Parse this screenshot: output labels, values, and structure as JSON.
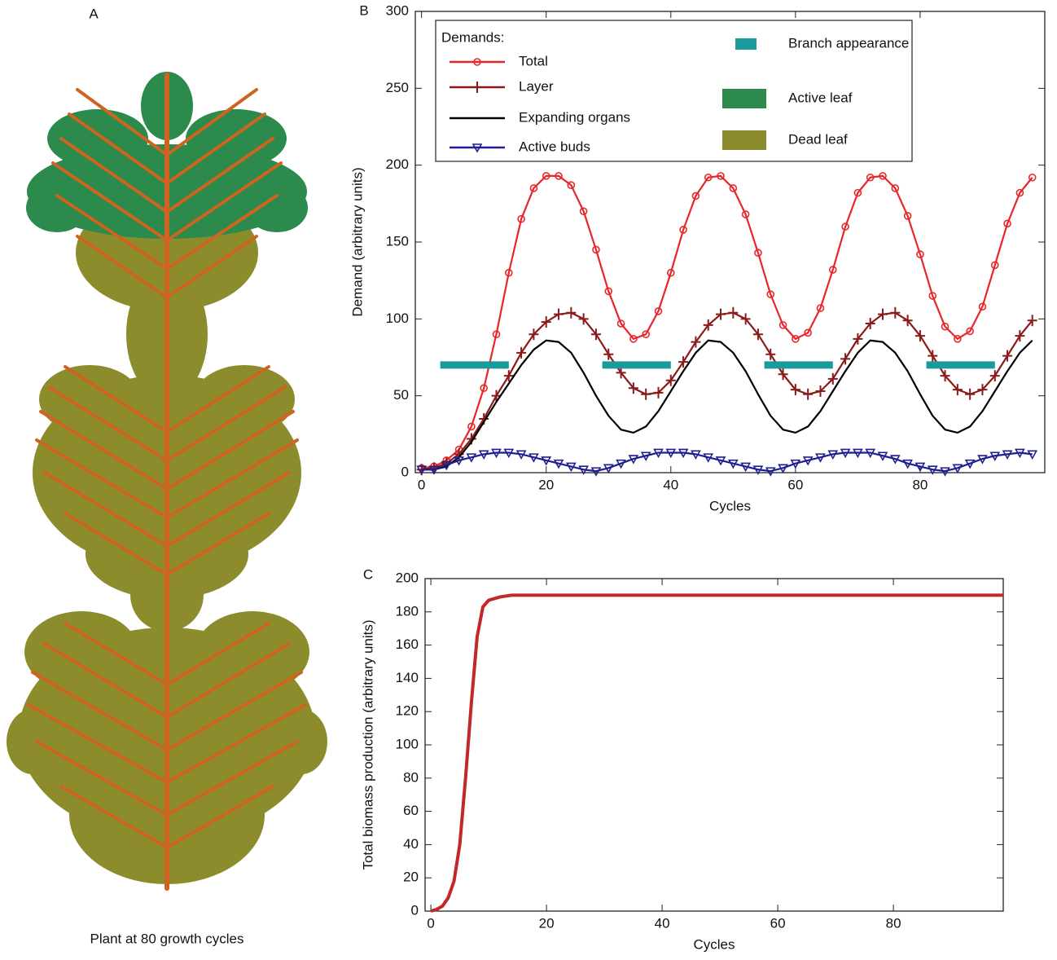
{
  "plant": {
    "panel_label": "A",
    "caption": "Plant at 80 growth cycles"
  },
  "chart_data": [
    {
      "type": "line",
      "panel_label": "B",
      "xlabel": "Cycles",
      "ylabel": "Demand (arbitrary units)",
      "legend_title": "Demands:",
      "legend": "upper left",
      "grid": false,
      "xlim": [
        -1,
        100
      ],
      "ylim": [
        0,
        300
      ],
      "xticks": [
        0,
        20,
        40,
        60,
        80
      ],
      "yticks": [
        0,
        50,
        100,
        150,
        200,
        250,
        300
      ],
      "x": [
        0,
        2,
        4,
        6,
        8,
        10,
        12,
        14,
        16,
        18,
        20,
        22,
        24,
        26,
        28,
        30,
        32,
        34,
        36,
        38,
        40,
        42,
        44,
        46,
        48,
        50,
        52,
        54,
        56,
        58,
        60,
        62,
        64,
        66,
        68,
        70,
        72,
        74,
        76,
        78,
        80,
        82,
        84,
        86,
        88,
        90,
        92,
        94,
        96,
        98
      ],
      "series": [
        {
          "name": "Total",
          "color": "#e8262a",
          "marker": "circle",
          "values": [
            3,
            4,
            8,
            15,
            30,
            55,
            90,
            130,
            165,
            185,
            193,
            193,
            187,
            170,
            145,
            118,
            97,
            87,
            90,
            105,
            130,
            158,
            180,
            192,
            193,
            185,
            168,
            143,
            116,
            96,
            87,
            91,
            107,
            132,
            160,
            182,
            192,
            193,
            185,
            167,
            142,
            115,
            95,
            87,
            92,
            108,
            135,
            162,
            182,
            192
          ]
        },
        {
          "name": "Layer",
          "color": "#8b1a1a",
          "marker": "plus",
          "values": [
            2,
            3,
            6,
            12,
            22,
            35,
            50,
            63,
            78,
            90,
            98,
            103,
            104,
            100,
            90,
            77,
            65,
            55,
            51,
            52,
            60,
            72,
            85,
            96,
            103,
            104,
            100,
            90,
            77,
            64,
            54,
            51,
            53,
            61,
            74,
            87,
            97,
            103,
            104,
            99,
            89,
            76,
            63,
            54,
            51,
            54,
            63,
            76,
            89,
            99
          ]
        },
        {
          "name": "Expanding organs",
          "color": "#000000",
          "marker": null,
          "values": [
            2,
            2,
            4,
            10,
            20,
            33,
            46,
            58,
            70,
            80,
            86,
            85,
            78,
            65,
            50,
            37,
            28,
            26,
            30,
            40,
            53,
            66,
            78,
            86,
            85,
            78,
            66,
            51,
            37,
            28,
            26,
            30,
            40,
            53,
            66,
            78,
            86,
            85,
            78,
            66,
            51,
            37,
            28,
            26,
            30,
            40,
            53,
            66,
            78,
            86
          ]
        },
        {
          "name": "Active buds",
          "color": "#1f1f8f",
          "marker": "triangle",
          "values": [
            2,
            2,
            5,
            8,
            10,
            12,
            13,
            13,
            12,
            10,
            8,
            6,
            4,
            2,
            1,
            3,
            6,
            9,
            11,
            13,
            13,
            13,
            12,
            10,
            8,
            6,
            4,
            2,
            1,
            3,
            6,
            8,
            10,
            12,
            13,
            13,
            13,
            11,
            9,
            6,
            4,
            2,
            1,
            3,
            6,
            9,
            11,
            12,
            13,
            12
          ]
        },
        {
          "name": "Branch appearance",
          "color": "#1a9a9a",
          "marker": "square",
          "x": [
            3,
            14,
            15,
            29,
            40,
            41,
            55,
            66,
            67,
            81,
            92
          ],
          "values": [
            70,
            70,
            null,
            70,
            70,
            null,
            70,
            70,
            null,
            70,
            70
          ]
        }
      ],
      "legend_extra": [
        {
          "name": "Active leaf",
          "color": "#2b8a4c"
        },
        {
          "name": "Dead leaf",
          "color": "#8c8c2c"
        }
      ]
    },
    {
      "type": "line",
      "panel_label": "C",
      "xlabel": "Cycles",
      "ylabel": "Total biomass production (arbitrary units)",
      "grid": false,
      "xlim": [
        -1,
        99
      ],
      "ylim": [
        0,
        200
      ],
      "xticks": [
        0,
        20,
        40,
        60,
        80
      ],
      "yticks": [
        0,
        20,
        40,
        60,
        80,
        100,
        120,
        140,
        160,
        180,
        200
      ],
      "x": [
        0,
        1,
        2,
        3,
        4,
        5,
        6,
        7,
        8,
        9,
        10,
        12,
        14,
        20,
        30,
        40,
        50,
        60,
        70,
        80,
        90,
        99
      ],
      "series": [
        {
          "color": "#c0282a",
          "values": [
            0,
            1,
            3,
            8,
            18,
            40,
            80,
            125,
            165,
            183,
            187,
            189,
            190,
            190,
            190,
            190,
            190,
            190,
            190,
            190,
            190,
            190
          ]
        }
      ]
    }
  ]
}
